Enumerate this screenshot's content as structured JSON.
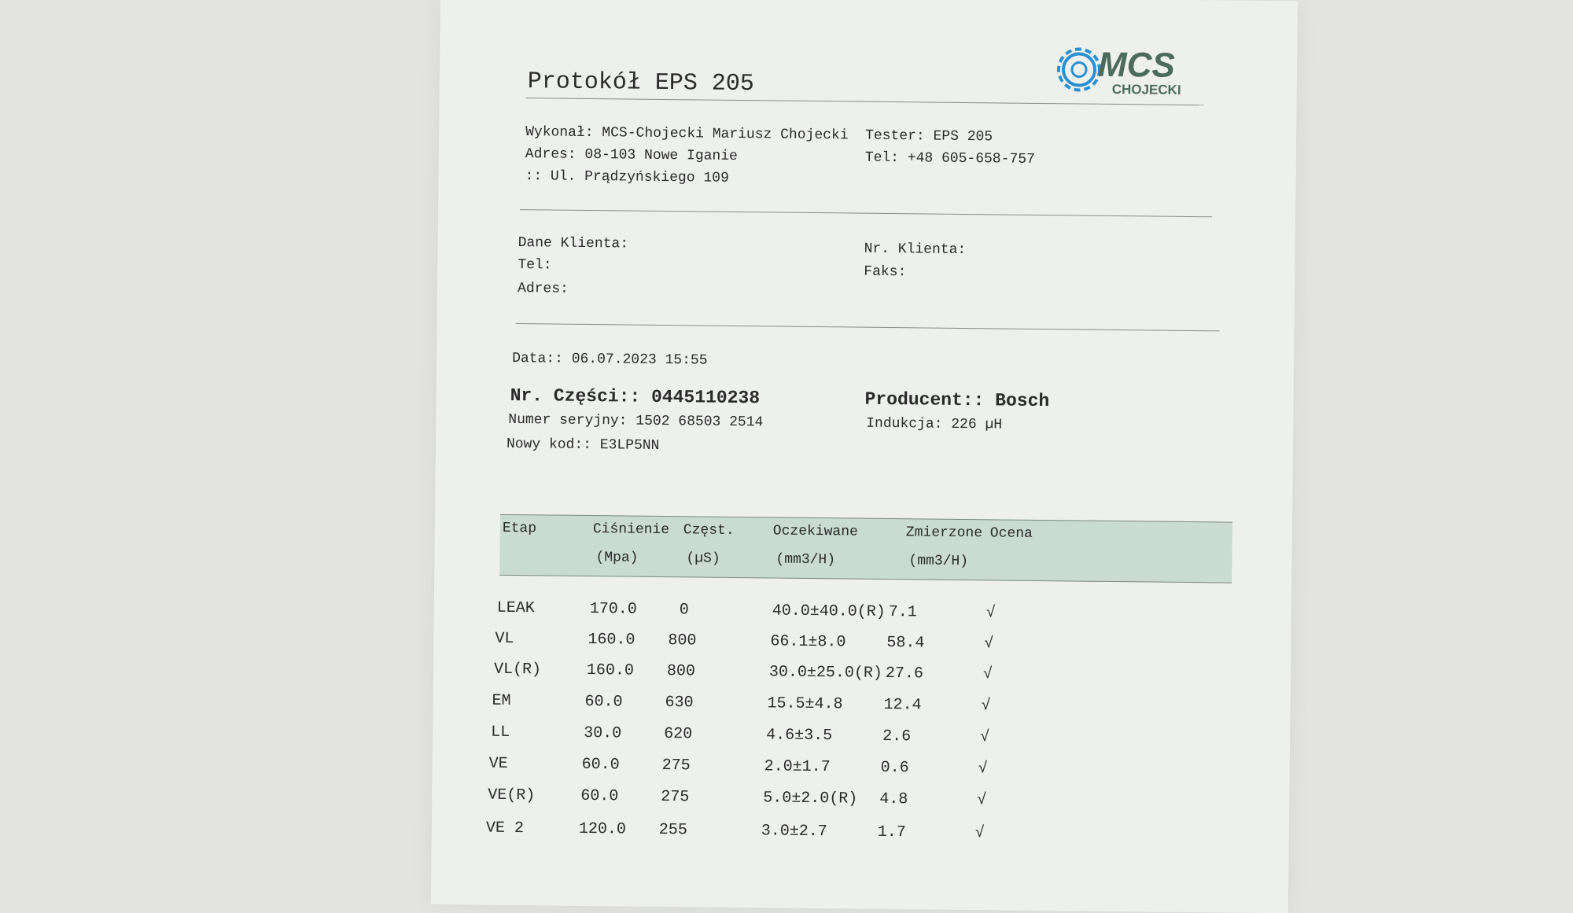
{
  "header": {
    "title": "Protokół EPS 205",
    "logo_text": "MCS CHOJECKI",
    "brand_colors": {
      "gear": "#2b8fd0",
      "text": "#4d6a5f"
    }
  },
  "company": {
    "performed_by": "Wykonał: MCS-Chojecki Mariusz Chojecki",
    "address1": "Adres: 08-103 Nowe Iganie",
    "address2": ":: Ul. Prądzyńskiego 109",
    "tester": "Tester: EPS 205",
    "phone": "Tel: +48 605-658-757"
  },
  "client": {
    "data_label": "Dane Klienta:",
    "tel_label": "Tel:",
    "address_label": "Adres:",
    "number_label": "Nr. Klienta:",
    "fax_label": "Faks:"
  },
  "part": {
    "date": "Data:: 06.07.2023 15:55",
    "part_number": "Nr. Części:: 0445110238",
    "producer": "Producent:: Bosch",
    "serial": "Numer seryjny: 1502 68503 2514",
    "inductance": "Indukcja: 226 µH",
    "new_code": "Nowy kod:: E3LP5NN"
  },
  "table": {
    "headers": [
      "Etap",
      "Ciśnienie",
      "Częst.",
      "Oczekiwane",
      "Zmierzone",
      "Ocena"
    ],
    "units": [
      "",
      "(Mpa)",
      "(µS)",
      "(mm3/H)",
      "(mm3/H)",
      ""
    ],
    "rows": [
      [
        "LEAK",
        "170.0",
        "0",
        "40.0±40.0(R)",
        "7.1",
        "√"
      ],
      [
        "VL",
        "160.0",
        "800",
        "66.1±8.0",
        "58.4",
        "√"
      ],
      [
        "VL(R)",
        "160.0",
        "800",
        "30.0±25.0(R)",
        "27.6",
        "√"
      ],
      [
        "EM",
        "60.0",
        "630",
        "15.5±4.8",
        "12.4",
        "√"
      ],
      [
        "LL",
        "30.0",
        "620",
        "4.6±3.5",
        "2.6",
        "√"
      ],
      [
        "VE",
        "60.0",
        "275",
        "2.0±1.7",
        "0.6",
        "√"
      ],
      [
        "VE(R)",
        "60.0",
        "275",
        "5.0±2.0(R)",
        "4.8",
        "√"
      ],
      [
        "VE 2",
        "120.0",
        "255",
        "3.0±2.7",
        "1.7",
        "√"
      ]
    ]
  }
}
